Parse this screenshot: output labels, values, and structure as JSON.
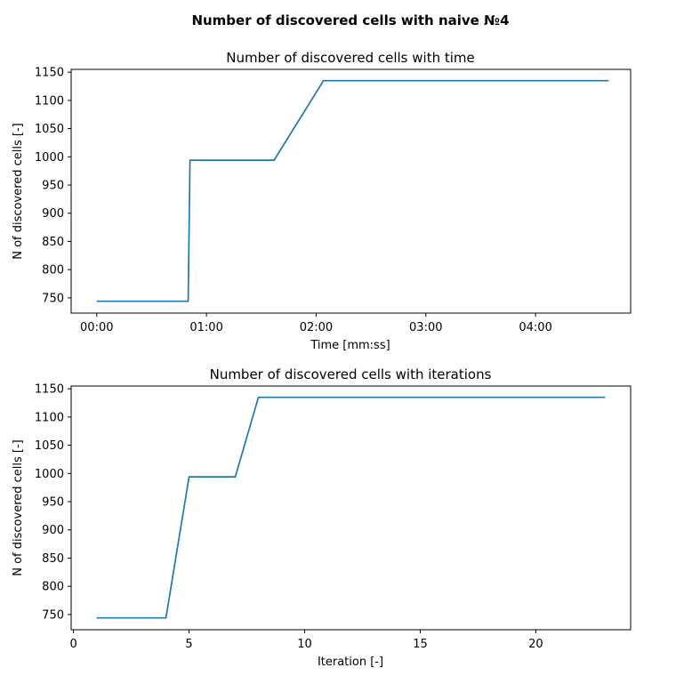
{
  "figure": {
    "title": "Number of discovered cells with naive №4"
  },
  "chart_data": [
    {
      "type": "line",
      "title": "Number of discovered cells with time",
      "xlabel": "Time [mm:ss]",
      "ylabel": "N of discovered cells [-]",
      "x_units": "seconds",
      "xlim": [
        -14,
        292
      ],
      "ylim": [
        723,
        1155
      ],
      "grid": false,
      "xticks": [
        {
          "value": 0,
          "label": "00:00"
        },
        {
          "value": 60,
          "label": "01:00"
        },
        {
          "value": 120,
          "label": "02:00"
        },
        {
          "value": 180,
          "label": "03:00"
        },
        {
          "value": 240,
          "label": "04:00"
        }
      ],
      "yticks": [
        750,
        800,
        850,
        900,
        950,
        1000,
        1050,
        1100,
        1150
      ],
      "series": [
        {
          "color": "#1f77b4",
          "x": [
            0,
            50,
            51,
            97,
            124,
            280
          ],
          "y": [
            744,
            744,
            994,
            994,
            1135,
            1135
          ]
        }
      ]
    },
    {
      "type": "line",
      "title": "Number of discovered cells with iterations",
      "xlabel": "Iteration [-]",
      "ylabel": "N of discovered cells [-]",
      "xlim": [
        -0.1,
        24.1
      ],
      "ylim": [
        723,
        1155
      ],
      "grid": false,
      "xticks": [
        {
          "value": 0,
          "label": "0"
        },
        {
          "value": 5,
          "label": "5"
        },
        {
          "value": 10,
          "label": "10"
        },
        {
          "value": 15,
          "label": "15"
        },
        {
          "value": 20,
          "label": "20"
        }
      ],
      "yticks": [
        750,
        800,
        850,
        900,
        950,
        1000,
        1050,
        1100,
        1150
      ],
      "series": [
        {
          "color": "#1f77b4",
          "x": [
            1,
            2,
            3,
            4,
            5,
            6,
            7,
            8,
            9,
            10,
            11,
            12,
            13,
            14,
            15,
            16,
            17,
            18,
            19,
            20,
            21,
            22,
            23
          ],
          "y": [
            744,
            744,
            744,
            744,
            994,
            994,
            994,
            1135,
            1135,
            1135,
            1135,
            1135,
            1135,
            1135,
            1135,
            1135,
            1135,
            1135,
            1135,
            1135,
            1135,
            1135,
            1135
          ]
        }
      ]
    }
  ]
}
